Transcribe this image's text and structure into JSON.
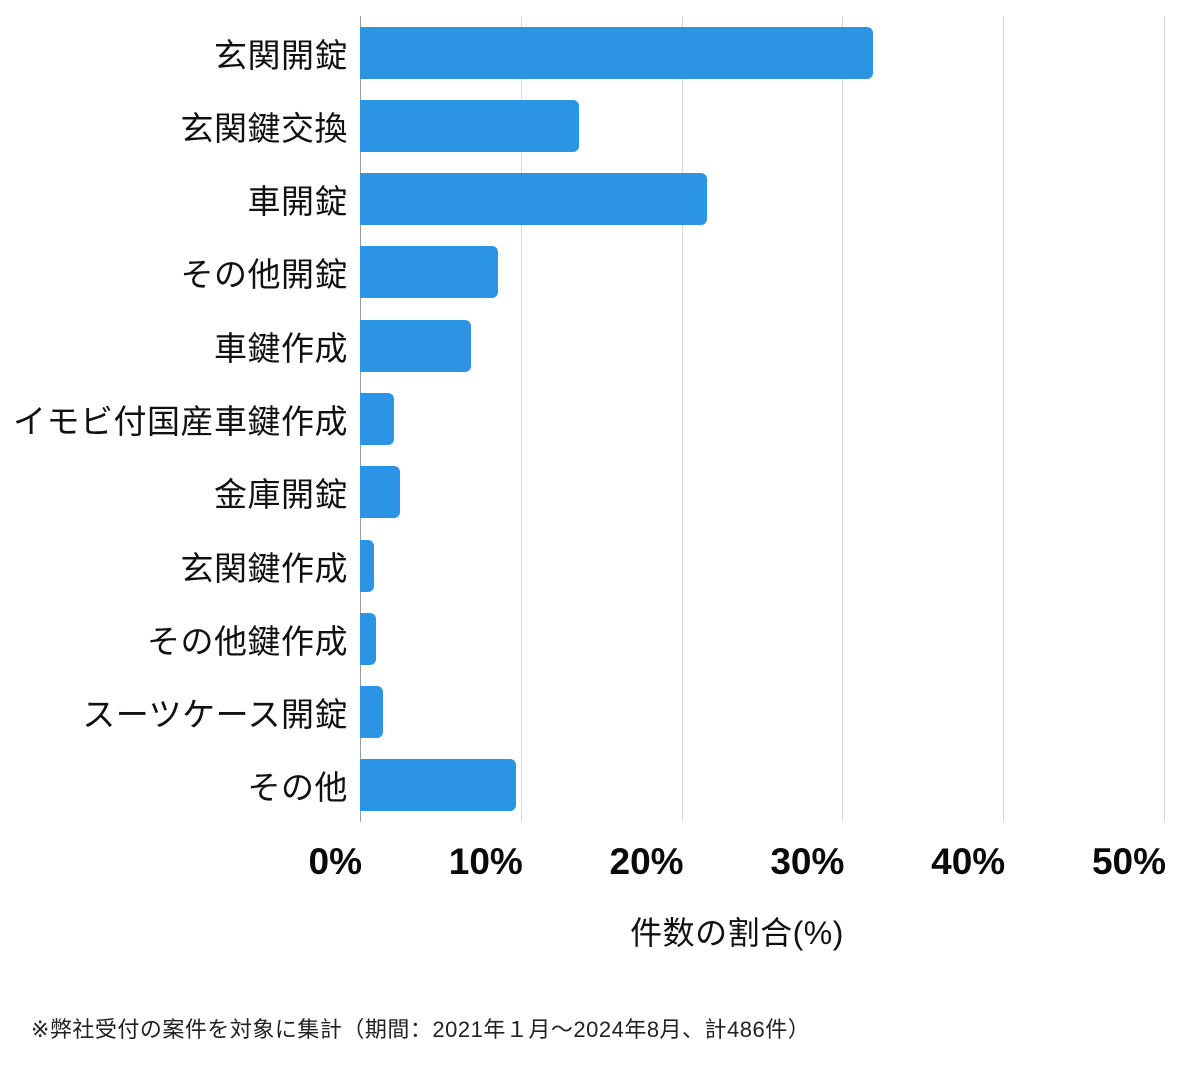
{
  "chart_data": {
    "type": "bar",
    "orientation": "horizontal",
    "categories": [
      "玄関開錠",
      "玄関鍵交換",
      "車開錠",
      "その他開錠",
      "車鍵作成",
      "イモビ付国産車鍵作成",
      "金庫開錠",
      "玄関鍵作成",
      "その他鍵作成",
      "スーツケース開錠",
      "その他"
    ],
    "values": [
      31.9,
      13.6,
      21.6,
      8.6,
      6.9,
      2.1,
      2.5,
      0.9,
      1.0,
      1.4,
      9.7
    ],
    "value_unit": "%",
    "title": "",
    "xlabel": "件数の割合(%)",
    "ylabel": "",
    "xlim": [
      0,
      50
    ],
    "xticks": [
      "0%",
      "10%",
      "20%",
      "30%",
      "40%",
      "50%"
    ],
    "xtick_values": [
      0,
      10,
      20,
      30,
      40,
      50
    ],
    "grid": true,
    "legend": false,
    "bar_color": "#2B94E5",
    "gridline_color": "#d9d9d9",
    "axis_line_color": "#9b9b9b"
  },
  "footnote": "※弊社受付の案件を対象に集計（期間：2021年１月～2024年8月、計486件）"
}
